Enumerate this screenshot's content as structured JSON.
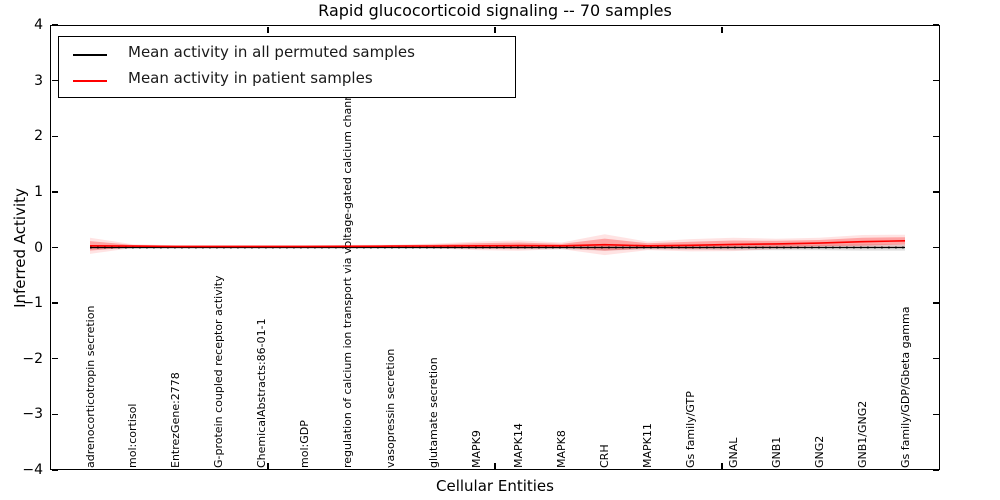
{
  "title": "Rapid glucocorticoid signaling -- 70 samples",
  "axes": {
    "ylabel": "Inferred Activity",
    "xlabel": "Cellular Entities",
    "yticks": [
      "4",
      "3",
      "2",
      "1",
      "0",
      "−1",
      "−2",
      "−3",
      "−4"
    ],
    "ylim": [
      -4,
      4
    ]
  },
  "legend": {
    "items": [
      {
        "label": "Mean activity in all permuted samples",
        "color": "#000000"
      },
      {
        "label": "Mean activity in patient samples",
        "color": "#ff0000"
      }
    ]
  },
  "colors": {
    "patient_line": "#ff0000",
    "permuted_line": "#000000",
    "zero_line": "#000000",
    "patient_band_inner": "rgba(255,0,0,0.28)",
    "patient_band_outer": "rgba(255,0,0,0.11)",
    "permuted_band": "rgba(0,0,0,0.12)"
  },
  "chart_data": {
    "type": "line",
    "title": "Rapid glucocorticoid signaling -- 70 samples",
    "xlabel": "Cellular Entities",
    "ylabel": "Inferred Activity",
    "ylim": [
      -4,
      4
    ],
    "grid": false,
    "legend_position": "upper left",
    "categories": [
      "adrenocorticotropin secretion",
      "mol:cortisol",
      "EntrezGene:2778",
      "G-protein coupled receptor activity",
      "ChemicalAbstracts:86-01-1",
      "mol:GDP",
      "regulation of calcium ion transport via voltage-gated calcium channels",
      "vasopressin secretion",
      "glutamate secretion",
      "MAPK9",
      "MAPK14",
      "MAPK8",
      "CRH",
      "MAPK11",
      "Gs family/GTP",
      "GNAL",
      "GNB1",
      "GNG2",
      "GNB1/GNG2",
      "Gs family/GDP/Gbeta gamma"
    ],
    "series": [
      {
        "name": "Mean activity in all permuted samples",
        "values": [
          0.0,
          0.0,
          0.0,
          0.0,
          0.0,
          0.0,
          0.0,
          0.0,
          0.0,
          0.0,
          0.0,
          0.0,
          0.0,
          0.0,
          0.0,
          0.0,
          0.0,
          0.0,
          0.0,
          0.0
        ],
        "band_halfwidth": [
          0.03,
          0.02,
          0.015,
          0.015,
          0.015,
          0.015,
          0.015,
          0.015,
          0.02,
          0.025,
          0.03,
          0.03,
          0.055,
          0.035,
          0.04,
          0.05,
          0.05,
          0.05,
          0.055,
          0.055
        ]
      },
      {
        "name": "Mean activity in patient samples",
        "values": [
          0.03,
          0.025,
          0.02,
          0.02,
          0.02,
          0.02,
          0.022,
          0.025,
          0.027,
          0.03,
          0.035,
          0.03,
          0.05,
          0.03,
          0.04,
          0.055,
          0.065,
          0.08,
          0.105,
          0.12
        ],
        "band_halfwidth": [
          0.085,
          0.02,
          0.012,
          0.012,
          0.012,
          0.012,
          0.015,
          0.015,
          0.025,
          0.045,
          0.055,
          0.035,
          0.11,
          0.045,
          0.065,
          0.07,
          0.055,
          0.055,
          0.07,
          0.065
        ]
      }
    ],
    "zero_reference_line": 0.0
  }
}
